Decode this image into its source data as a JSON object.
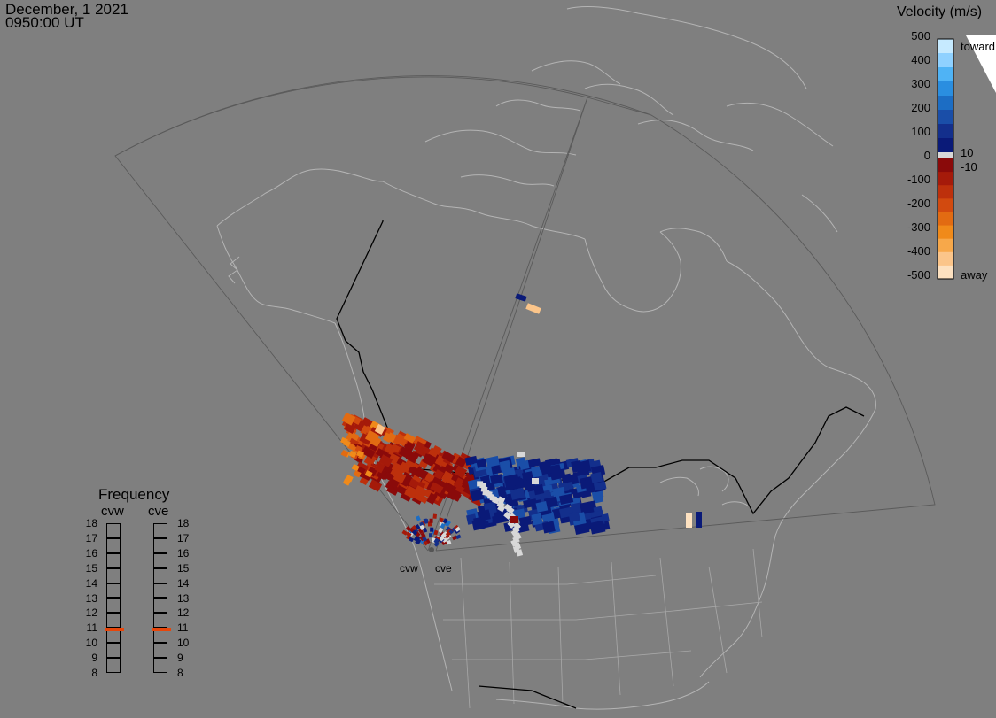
{
  "header": {
    "date": "December, 1 2021",
    "time": "0950:00 UT"
  },
  "velocity_legend": {
    "title": "Velocity (m/s)",
    "ticks": [
      "500",
      "400",
      "300",
      "200",
      "100",
      "0",
      "-100",
      "-200",
      "-300",
      "-400",
      "-500"
    ],
    "side_labels": {
      "toward": "toward",
      "plus10": "10",
      "minus10": "-10",
      "away": "away"
    },
    "colors_toward": [
      "#c6eaff",
      "#8fd1ff",
      "#4fb3f5",
      "#2a8ee0",
      "#1c6dc4",
      "#1a4ea8",
      "#132f8c",
      "#0a1a78"
    ],
    "colors_away": [
      "#8a0a0a",
      "#a51a0a",
      "#bd300c",
      "#d24a0f",
      "#e26b12",
      "#f08a1a",
      "#f7a84a",
      "#fbc58a",
      "#fde1c0"
    ],
    "ground_scatter_color": "#d8d8d8"
  },
  "frequency_panel": {
    "title": "Frequency",
    "columns": [
      "cvw",
      "cve"
    ],
    "levels": [
      "18",
      "17",
      "16",
      "15",
      "14",
      "13",
      "12",
      "11",
      "10",
      "9",
      "8"
    ],
    "cvw_mhz": 10.9,
    "cve_mhz": 10.9,
    "indicator_color": "#e8460a"
  },
  "radar_sites": [
    "cvw",
    "cve"
  ]
}
